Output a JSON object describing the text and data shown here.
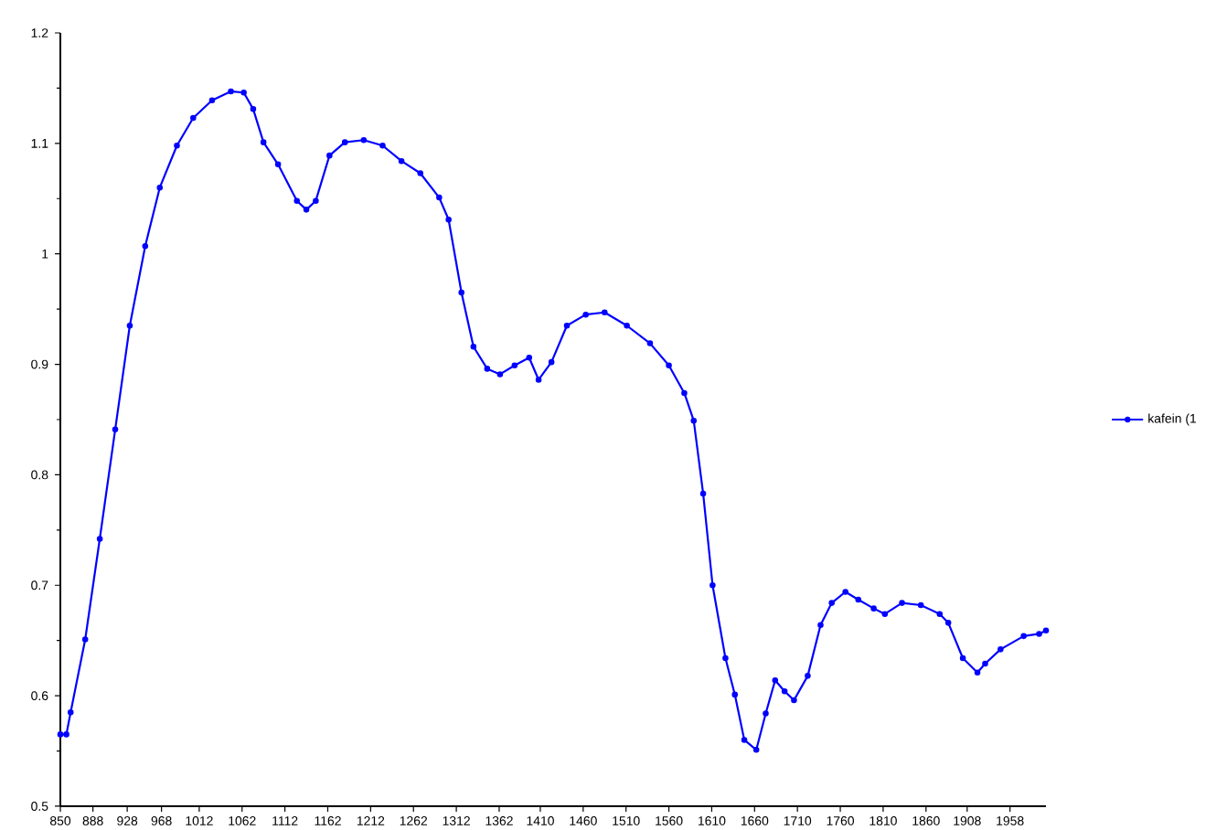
{
  "chart_data": {
    "type": "line",
    "x": [
      850,
      857,
      862,
      879,
      896,
      914,
      931,
      949,
      966,
      986,
      1005,
      1027,
      1049,
      1064,
      1075,
      1087,
      1104,
      1126,
      1137,
      1148,
      1164,
      1182,
      1204,
      1226,
      1248,
      1270,
      1292,
      1303,
      1318,
      1332,
      1348,
      1363,
      1380,
      1397,
      1408,
      1423,
      1441,
      1463,
      1485,
      1511,
      1538,
      1560,
      1578,
      1589,
      1600,
      1611,
      1626,
      1637,
      1648,
      1662,
      1673,
      1684,
      1695,
      1706,
      1722,
      1737,
      1750,
      1766,
      1781,
      1799,
      1812,
      1832,
      1854,
      1876,
      1886,
      1903,
      1920,
      1929,
      1947,
      1974,
      1992,
      2000
    ],
    "series": [
      {
        "name": "kafein (1",
        "color": "#0000ff",
        "values": [
          0.565,
          0.565,
          0.585,
          0.651,
          0.742,
          0.841,
          0.935,
          1.007,
          1.06,
          1.098,
          1.123,
          1.139,
          1.147,
          1.146,
          1.131,
          1.101,
          1.081,
          1.048,
          1.04,
          1.048,
          1.089,
          1.101,
          1.103,
          1.098,
          1.084,
          1.073,
          1.051,
          1.031,
          0.965,
          0.916,
          0.896,
          0.891,
          0.899,
          0.906,
          0.886,
          0.902,
          0.935,
          0.945,
          0.947,
          0.935,
          0.919,
          0.899,
          0.874,
          0.849,
          0.783,
          0.7,
          0.634,
          0.601,
          0.56,
          0.551,
          0.584,
          0.614,
          0.604,
          0.596,
          0.618,
          0.664,
          0.684,
          0.694,
          0.687,
          0.679,
          0.674,
          0.684,
          0.682,
          0.674,
          0.666,
          0.634,
          0.621,
          0.629,
          0.642,
          0.654,
          0.656,
          0.659
        ]
      }
    ],
    "xlim": [
      850,
      2000
    ],
    "xticks": [
      850,
      888,
      928,
      968,
      1012,
      1062,
      1112,
      1162,
      1212,
      1262,
      1312,
      1362,
      1410,
      1460,
      1510,
      1560,
      1610,
      1660,
      1710,
      1760,
      1810,
      1860,
      1908,
      1958
    ],
    "ylim": [
      0.5,
      1.2
    ],
    "yticks": [
      0.5,
      0.6,
      0.7,
      0.8,
      0.9,
      1,
      1.1,
      1.2
    ],
    "legend": "right",
    "marker": "circle",
    "line_style": "solid",
    "grid": false
  }
}
